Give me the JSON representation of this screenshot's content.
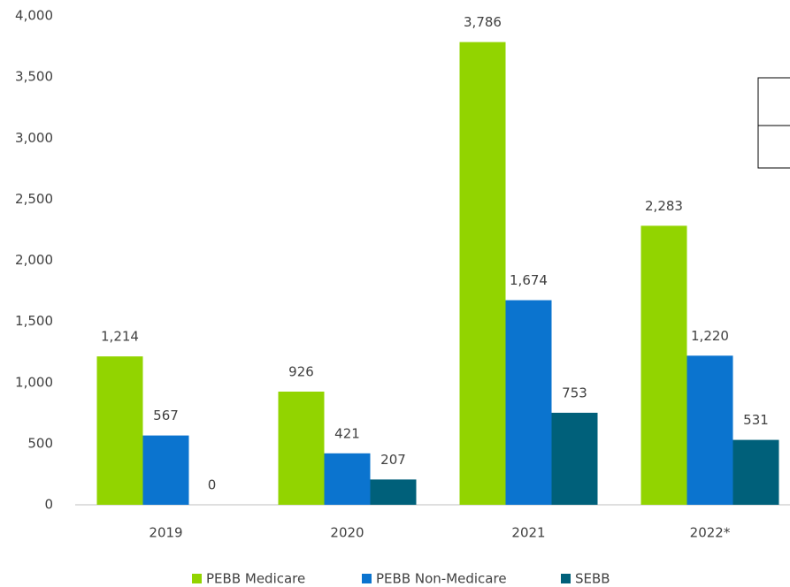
{
  "chart_data": {
    "type": "bar",
    "categories": [
      "2019",
      "2020",
      "2021",
      "2022*"
    ],
    "series": [
      {
        "name": "PEBB Medicare",
        "color": "#92d400",
        "values": [
          1214,
          926,
          3786,
          2283
        ],
        "value_labels": [
          "1,214",
          "926",
          "3,786",
          "2,283"
        ]
      },
      {
        "name": "PEBB Non-Medicare",
        "color": "#0b74cf",
        "values": [
          567,
          421,
          1674,
          1220
        ],
        "value_labels": [
          "567",
          "421",
          "1,674",
          "1,220"
        ]
      },
      {
        "name": "SEBB",
        "color": "#00607a",
        "values": [
          0,
          207,
          753,
          531
        ],
        "value_labels": [
          "0",
          "207",
          "753",
          "531"
        ]
      }
    ],
    "ylim": [
      0,
      4000
    ],
    "yticks": [
      0,
      500,
      {
        "value": 1000,
        "label": "1,000"
      },
      {
        "value": 1500,
        "label": "1,500"
      },
      {
        "value": 2000,
        "label": "2,000"
      },
      {
        "value": 2500,
        "label": "2,500"
      },
      {
        "value": 3000,
        "label": "3,000"
      },
      {
        "value": 3500,
        "label": "3,500"
      },
      {
        "value": 4000,
        "label": "4,000"
      }
    ],
    "grid": false,
    "legend": "bottom"
  }
}
